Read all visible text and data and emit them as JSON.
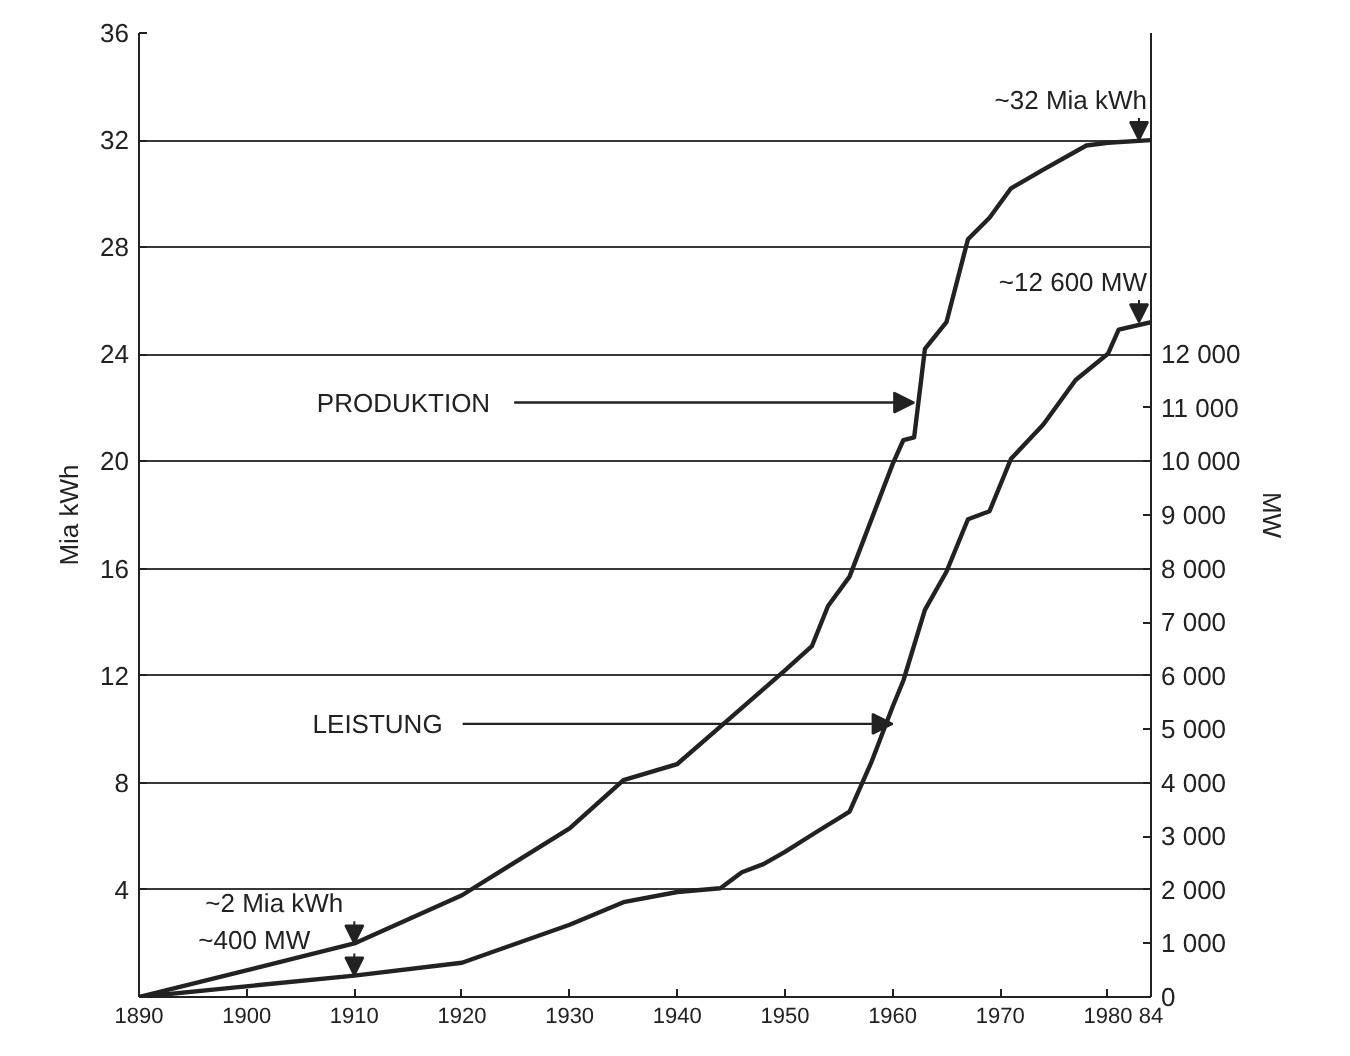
{
  "chart_data": {
    "type": "line",
    "ylabel": "Mia kWh",
    "y2label": "MW",
    "xlim": [
      1890,
      1984
    ],
    "xticks": [
      1890,
      1900,
      1910,
      1920,
      1930,
      1940,
      1950,
      1960,
      1970,
      1980,
      {
        "value": 1984,
        "label": "84"
      }
    ],
    "ylim": [
      0,
      36
    ],
    "yticks": [
      4,
      8,
      12,
      16,
      20,
      24,
      28,
      32,
      36
    ],
    "y2lim": [
      0,
      18000
    ],
    "y2ticks": [
      0,
      {
        "value": 1000,
        "label": "1 000"
      },
      {
        "value": 2000,
        "label": "2 000"
      },
      {
        "value": 3000,
        "label": "3 000"
      },
      {
        "value": 4000,
        "label": "4 000"
      },
      {
        "value": 5000,
        "label": "5 000"
      },
      {
        "value": 6000,
        "label": "6 000"
      },
      {
        "value": 7000,
        "label": "7 000"
      },
      {
        "value": 8000,
        "label": "8 000"
      },
      {
        "value": 9000,
        "label": "9 000"
      },
      {
        "value": 10000,
        "label": "10 000"
      },
      {
        "value": 11000,
        "label": "11 000"
      },
      {
        "value": 12000,
        "label": "12 000"
      }
    ],
    "grid": "y",
    "marker": "none",
    "line_style": "solid",
    "series": [
      {
        "color": "#222222",
        "x": [
          1890,
          1910,
          1920,
          1930,
          1935,
          1940,
          1944,
          1946,
          1950,
          1952.5,
          1954,
          1956,
          1960,
          1961,
          1962,
          1963,
          1965,
          1967,
          1969,
          1971,
          1974,
          1978,
          1980,
          1984
        ],
        "values": [
          0,
          2,
          3.8,
          6.3,
          8.1,
          8.7,
          10.1,
          10.8,
          12.2,
          13.1,
          14.6,
          15.7,
          19.9,
          20.8,
          20.9,
          24.2,
          25.2,
          28.3,
          29.1,
          30.2,
          30.9,
          31.8,
          31.9,
          32
        ]
      },
      {
        "color": "#222222",
        "axis": "y2",
        "x": [
          1890,
          1910,
          1920,
          1930,
          1935,
          1940,
          1944,
          1946,
          1948,
          1950,
          1953,
          1956,
          1958,
          1960,
          1961,
          1963,
          1965,
          1967,
          1969,
          1971,
          1974,
          1977,
          1980,
          1981,
          1984
        ],
        "values": [
          0,
          400,
          640,
          1350,
          1770,
          1960,
          2030,
          2330,
          2480,
          2710,
          3090,
          3460,
          4370,
          5420,
          5910,
          7230,
          7940,
          8920,
          9070,
          10050,
          10690,
          11520,
          12010,
          12460,
          12600
        ]
      }
    ],
    "annotations": [
      {
        "text": "PRODUKTION",
        "x": 1962,
        "y": 22.2
      },
      {
        "text": "LEISTUNG",
        "x": 1960,
        "y": 10.2
      },
      {
        "text": "~32 Mia kWh",
        "x": 1984,
        "y": 32
      },
      {
        "text": "~12 600 MW",
        "x": 1984,
        "y": 25.2
      },
      {
        "text": "~2 Mia kWh",
        "x": 1910,
        "y": 2
      },
      {
        "text": "~400 MW",
        "x": 1910,
        "y": 0.8
      }
    ]
  }
}
